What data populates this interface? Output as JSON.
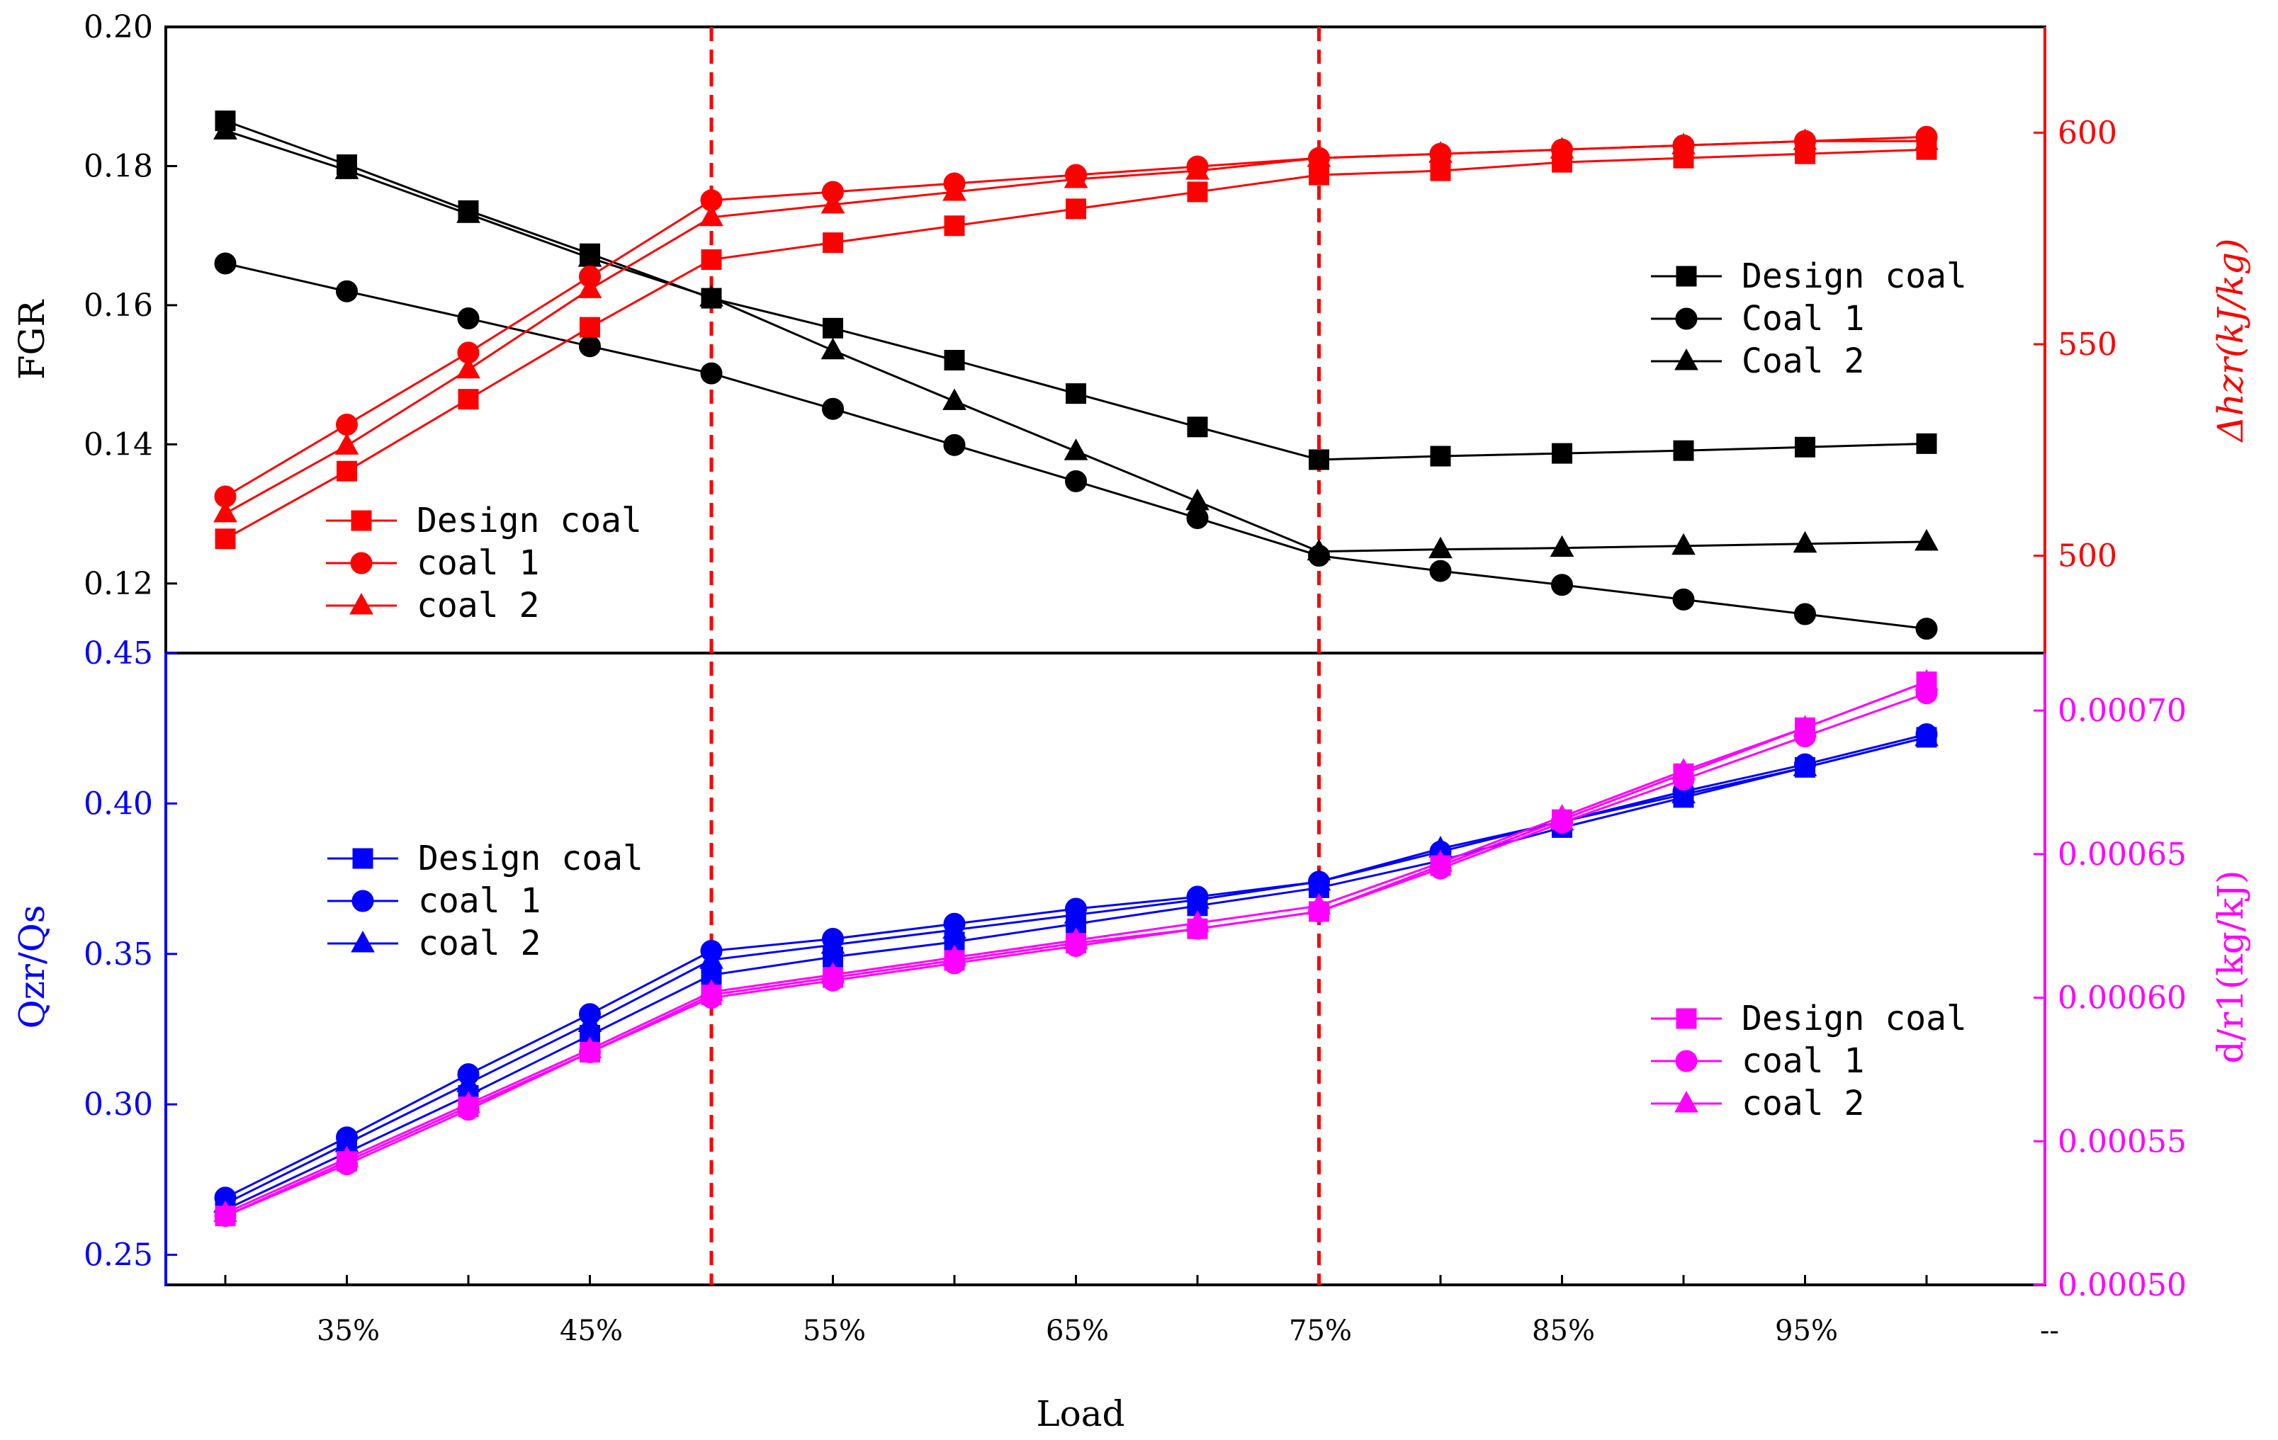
{
  "chart_data": {
    "type": "line",
    "x_title": "Load",
    "categories": [
      "30%",
      "35%",
      "40%",
      "45%",
      "50%",
      "55%",
      "60%",
      "65%",
      "70%",
      "75%",
      "80%",
      "85%",
      "90%",
      "95%",
      "100%"
    ],
    "x_tick_labels": [
      "35%",
      "45%",
      "55%",
      "65%",
      "75%",
      "85%",
      "95%",
      "--"
    ],
    "reference_lines": [
      50,
      75
    ],
    "colors": {
      "black": "#000000",
      "red": "#ff0000",
      "blue": "#0000ff",
      "magenta": "#ff00ff"
    },
    "top_left_axis": {
      "title": "FGR",
      "ylim": [
        0.11,
        0.2
      ],
      "ticks": [
        "0.12",
        "0.14",
        "0.16",
        "0.18",
        "0.20"
      ],
      "series": [
        {
          "name": "Design coal",
          "marker": "square",
          "values": [
            0.1865,
            0.1802,
            0.1736,
            0.1674,
            0.161,
            0.1567,
            0.1521,
            0.1473,
            0.1425,
            0.1378,
            0.1383,
            0.1387,
            0.1391,
            0.1396,
            0.1401
          ]
        },
        {
          "name": "Coal 1",
          "marker": "circle",
          "values": [
            0.166,
            0.162,
            0.1581,
            0.1541,
            0.1502,
            0.1451,
            0.1399,
            0.1347,
            0.1294,
            0.124,
            0.1218,
            0.1198,
            0.1177,
            0.1156,
            0.1135
          ]
        },
        {
          "name": "Coal 2",
          "marker": "triangle",
          "values": [
            0.1851,
            0.1794,
            0.1731,
            0.1668,
            0.1611,
            0.1535,
            0.1462,
            0.139,
            0.1318,
            0.1246,
            0.1249,
            0.1251,
            0.1254,
            0.1257,
            0.126
          ]
        }
      ],
      "legend": [
        "Design coal",
        "Coal 1",
        "Coal 2"
      ]
    },
    "top_right_axis": {
      "title": "Δhzr(kJ/kg)",
      "ylim": [
        477,
        625
      ],
      "ticks": [
        "500",
        "550",
        "600"
      ],
      "series": [
        {
          "name": "Design coal",
          "marker": "square",
          "values": [
            504,
            520,
            537,
            554,
            570,
            574,
            578,
            582,
            586,
            590,
            591,
            593,
            594,
            595,
            596
          ]
        },
        {
          "name": "coal 1",
          "marker": "circle",
          "values": [
            514,
            531,
            548,
            566,
            584,
            586,
            588,
            590,
            592,
            594,
            595,
            596,
            597,
            598,
            599
          ]
        },
        {
          "name": "coal 2",
          "marker": "triangle",
          "values": [
            510,
            526,
            544,
            563,
            580,
            583,
            586,
            589,
            591,
            594,
            595,
            596,
            597,
            598,
            598
          ]
        }
      ],
      "legend": [
        "Design coal",
        "coal 1",
        "coal 2"
      ]
    },
    "bottom_left_axis": {
      "title": "Qzr/Qs",
      "ylim": [
        0.24,
        0.45
      ],
      "ticks": [
        "0.25",
        "0.30",
        "0.35",
        "0.40",
        "0.45"
      ],
      "series": [
        {
          "name": "Design coal",
          "marker": "square",
          "values": [
            0.265,
            0.284,
            0.303,
            0.323,
            0.343,
            0.349,
            0.354,
            0.36,
            0.366,
            0.372,
            0.381,
            0.392,
            0.402,
            0.412,
            0.422
          ]
        },
        {
          "name": "coal 1",
          "marker": "circle",
          "values": [
            0.269,
            0.289,
            0.31,
            0.33,
            0.351,
            0.355,
            0.36,
            0.365,
            0.369,
            0.374,
            0.384,
            0.394,
            0.404,
            0.413,
            0.423
          ]
        },
        {
          "name": "coal 2",
          "marker": "triangle",
          "values": [
            0.267,
            0.287,
            0.307,
            0.327,
            0.348,
            0.353,
            0.358,
            0.363,
            0.368,
            0.374,
            0.385,
            0.394,
            0.403,
            0.412,
            0.422
          ]
        }
      ],
      "legend": [
        "Design coal",
        "coal 1",
        "coal 2"
      ]
    },
    "bottom_right_axis": {
      "title": "d/r1(kg/kJ)",
      "ylim": [
        0.0005,
        0.00072
      ],
      "ticks": [
        "0.00050",
        "0.00055",
        "0.00060",
        "0.00065",
        "0.00070"
      ],
      "series": [
        {
          "name": "Design coal",
          "marker": "square",
          "values": [
            0.000524,
            0.000543,
            0.000562,
            0.000581,
            0.000601,
            0.000607,
            0.000613,
            0.000619,
            0.000624,
            0.00063,
            0.000646,
            0.000662,
            0.000678,
            0.000694,
            0.00071
          ]
        },
        {
          "name": "coal 1",
          "marker": "circle",
          "values": [
            0.000524,
            0.000542,
            0.000561,
            0.000581,
            0.0006,
            0.000606,
            0.000612,
            0.000618,
            0.000624,
            0.00063,
            0.000645,
            0.000661,
            0.000676,
            0.000691,
            0.000706
          ]
        },
        {
          "name": "coal 2",
          "marker": "triangle",
          "values": [
            0.000525,
            0.000544,
            0.000563,
            0.000582,
            0.000602,
            0.000608,
            0.000614,
            0.00062,
            0.000626,
            0.000632,
            0.000647,
            0.000663,
            0.000679,
            0.000694,
            0.00071
          ]
        }
      ],
      "legend": [
        "Design coal",
        "coal 1",
        "coal 2"
      ]
    }
  }
}
